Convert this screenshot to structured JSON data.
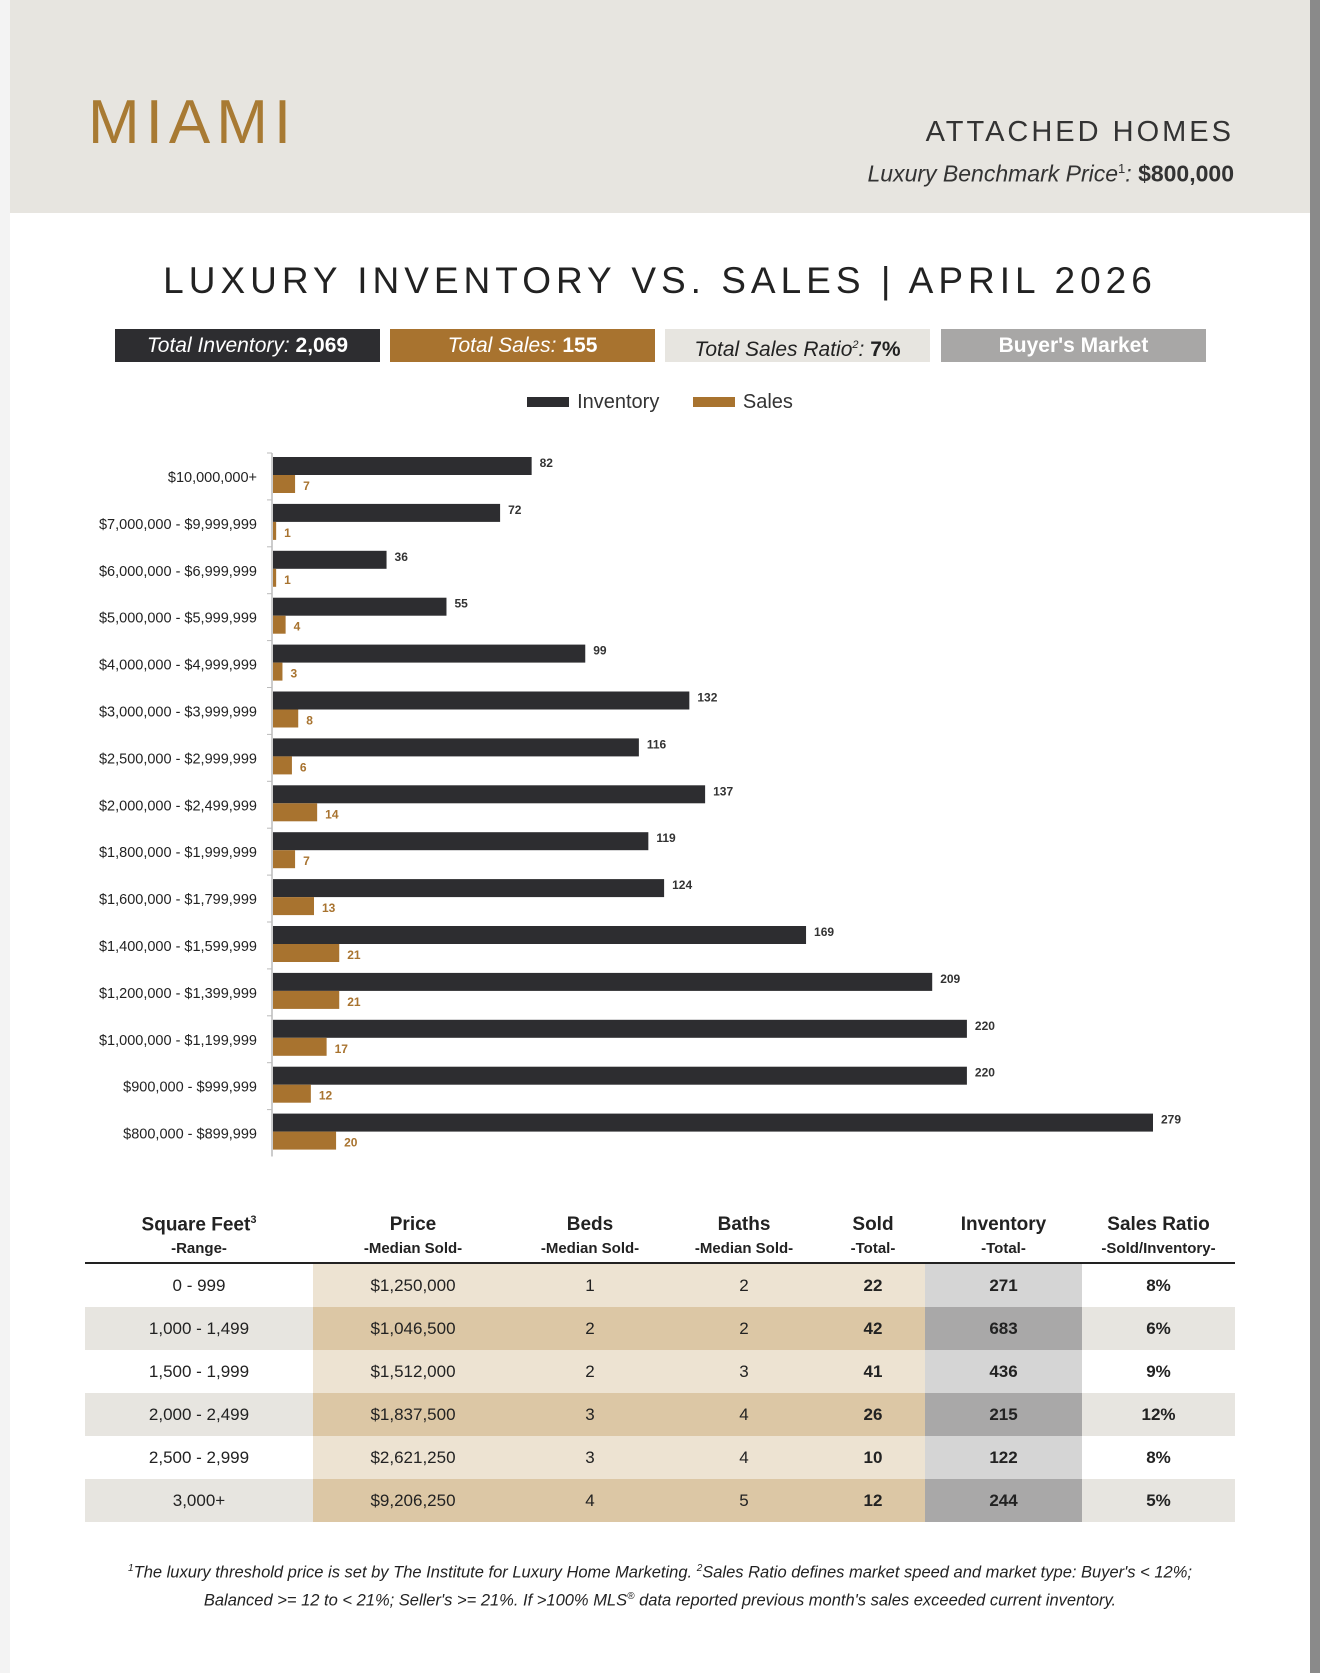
{
  "header": {
    "city": "MIAMI",
    "property_type": "ATTACHED HOMES",
    "benchmark_label": "Luxury Benchmark Price",
    "benchmark_sup": "1",
    "benchmark_value": "$800,000"
  },
  "title": "LUXURY INVENTORY VS. SALES | APRIL 2026",
  "summary": {
    "inventory_label": "Total Inventory:",
    "inventory_value": "2,069",
    "sales_label": "Total Sales:",
    "sales_value": "155",
    "ratio_label": "Total Sales Ratio",
    "ratio_sup": "2",
    "ratio_value": "7%",
    "market": "Buyer's Market"
  },
  "colors": {
    "inventory": "#2d2d30",
    "sales": "#a8732f",
    "header_bg": "#e7e5e0",
    "accent_gold": "#a87a33"
  },
  "chart_data": {
    "type": "bar",
    "orientation": "horizontal",
    "categories": [
      "$10,000,000+",
      "$7,000,000 - $9,999,999",
      "$6,000,000 - $6,999,999",
      "$5,000,000 - $5,999,999",
      "$4,000,000 - $4,999,999",
      "$3,000,000 - $3,999,999",
      "$2,500,000 - $2,999,999",
      "$2,000,000 - $2,499,999",
      "$1,800,000 - $1,999,999",
      "$1,600,000 - $1,799,999",
      "$1,400,000 - $1,599,999",
      "$1,200,000 - $1,399,999",
      "$1,000,000 - $1,199,999",
      "$900,000 - $999,999",
      "$800,000 - $899,999"
    ],
    "series": [
      {
        "name": "Inventory",
        "values": [
          82,
          72,
          36,
          55,
          99,
          132,
          116,
          137,
          119,
          124,
          169,
          209,
          220,
          220,
          279
        ]
      },
      {
        "name": "Sales",
        "values": [
          7,
          1,
          1,
          4,
          3,
          8,
          6,
          14,
          7,
          13,
          21,
          21,
          17,
          12,
          20
        ]
      }
    ],
    "xlim": [
      0,
      279
    ],
    "legend_position": "top-center",
    "grid": false
  },
  "table": {
    "headers": [
      {
        "main": "Square Feet",
        "sup": "3",
        "sub": "-Range-"
      },
      {
        "main": "Price",
        "sup": "",
        "sub": "-Median Sold-"
      },
      {
        "main": "Beds",
        "sup": "",
        "sub": "-Median Sold-"
      },
      {
        "main": "Baths",
        "sup": "",
        "sub": "-Median Sold-"
      },
      {
        "main": "Sold",
        "sup": "",
        "sub": "-Total-"
      },
      {
        "main": "Inventory",
        "sup": "",
        "sub": "-Total-"
      },
      {
        "main": "Sales Ratio",
        "sup": "",
        "sub": "-Sold/Inventory-"
      }
    ],
    "rows": [
      [
        "0 - 999",
        "$1,250,000",
        "1",
        "2",
        "22",
        "271",
        "8%"
      ],
      [
        "1,000 - 1,499",
        "$1,046,500",
        "2",
        "2",
        "42",
        "683",
        "6%"
      ],
      [
        "1,500 - 1,999",
        "$1,512,000",
        "2",
        "3",
        "41",
        "436",
        "9%"
      ],
      [
        "2,000 - 2,499",
        "$1,837,500",
        "3",
        "4",
        "26",
        "215",
        "12%"
      ],
      [
        "2,500 - 2,999",
        "$2,621,250",
        "3",
        "4",
        "10",
        "122",
        "8%"
      ],
      [
        "3,000+",
        "$9,206,250",
        "4",
        "5",
        "12",
        "244",
        "5%"
      ]
    ]
  },
  "footnote": {
    "sup1": "1",
    "text1": "The luxury threshold price is set by The Institute for Luxury Home Marketing. ",
    "sup2": "2",
    "text2": "Sales Ratio defines market speed and market type: Buyer's < 12%;",
    "line2": "Balanced >= 12 to < 21%; Seller's >= 21%. If >100% MLS",
    "reg": "®",
    "line2_end": " data reported previous month's sales exceeded current inventory."
  }
}
